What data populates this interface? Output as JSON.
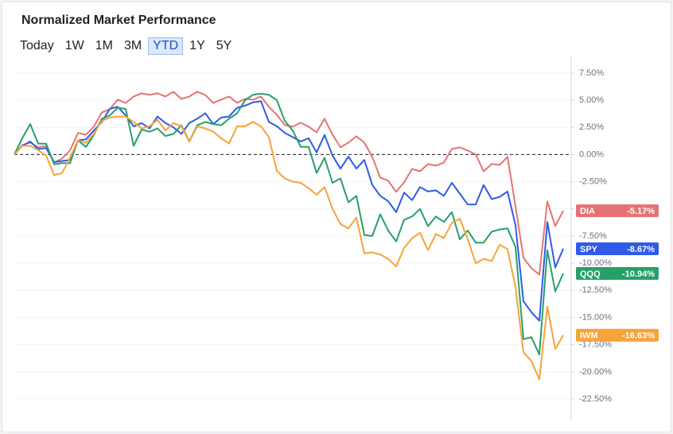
{
  "chart_data": {
    "type": "line",
    "title": "Normalized Market Performance",
    "ranges": [
      "Today",
      "1W",
      "1M",
      "3M",
      "YTD",
      "1Y",
      "5Y"
    ],
    "active_range": "YTD",
    "ylim": [
      -24.4,
      9.1
    ],
    "yticks": [
      {
        "value": 7.5,
        "label": "7.50%"
      },
      {
        "value": 5,
        "label": "5.00%"
      },
      {
        "value": 2.5,
        "label": "2.50%"
      },
      {
        "value": 0,
        "label": "0.00%"
      },
      {
        "value": -2.5,
        "label": "-2.50%"
      },
      {
        "value": -5,
        "label": "-5.00%"
      },
      {
        "value": -7.5,
        "label": "-7.50%"
      },
      {
        "value": -10,
        "label": "-10.00%"
      },
      {
        "value": -12.5,
        "label": "-12.50%"
      },
      {
        "value": -15,
        "label": "-15.00%"
      },
      {
        "value": -17.5,
        "label": "-17.50%"
      },
      {
        "value": -20,
        "label": "-20.00%"
      },
      {
        "value": -22.5,
        "label": "-22.50%"
      }
    ],
    "grid": true,
    "reference_line": 0,
    "series": [
      {
        "name": "DIA",
        "color": "#e57373",
        "values": [
          0,
          0.88,
          1.1,
          0.66,
          0.8,
          -0.73,
          -0.37,
          0.37,
          1.98,
          1.83,
          2.56,
          3.88,
          4.17,
          5.05,
          4.75,
          5.34,
          5.63,
          5.49,
          5.63,
          5.34,
          5.78,
          5.12,
          5.34,
          5.78,
          5.49,
          4.75,
          5.05,
          5.34,
          4.75,
          5.12,
          5.05,
          5.34,
          4.39,
          3.66,
          2.71,
          2.56,
          2.93,
          2.56,
          2.05,
          3.29,
          1.83,
          0.66,
          1.1,
          1.68,
          1.1,
          -0.22,
          -2.12,
          -2.41,
          -3.44,
          -2.56,
          -1.32,
          -1.54,
          -0.88,
          -1.02,
          -0.73,
          0.51,
          0.66,
          0.37,
          0,
          -1.54,
          -0.88,
          -0.95,
          -0.22,
          -4.75,
          -9.51,
          -10.46,
          -11.05,
          -4.32,
          -6.58,
          -5.17
        ],
        "value_labels": [
          null,
          null,
          null,
          null,
          null,
          null,
          null,
          null,
          null,
          null,
          null,
          null,
          null,
          null,
          null,
          null,
          null,
          null,
          null,
          null,
          null,
          null,
          null,
          null,
          null,
          null,
          null,
          null,
          null,
          null,
          null,
          null,
          null,
          null,
          null,
          null,
          null,
          null,
          null,
          null,
          null,
          null,
          null,
          null,
          null,
          null,
          null,
          null,
          null,
          null,
          null,
          null,
          null,
          null,
          null,
          null,
          null,
          null,
          null,
          null,
          null,
          null,
          null,
          null,
          null,
          null,
          null,
          null,
          null,
          "-5.17%"
        ]
      },
      {
        "name": "SPY",
        "color": "#2f5be8",
        "values": [
          0,
          0.8,
          1.2,
          0.5,
          0.6,
          -0.7,
          -0.6,
          -0.5,
          1.3,
          1.4,
          2.2,
          3.0,
          4.2,
          4.4,
          3.6,
          2.6,
          2.9,
          2.4,
          3.5,
          2.9,
          2.5,
          1.9,
          2.9,
          3.3,
          3.8,
          2.8,
          3.4,
          3.5,
          4.3,
          4.5,
          4.8,
          4.9,
          3.0,
          2.6,
          2.0,
          1.6,
          1.2,
          1.5,
          0.2,
          1.8,
          -0.1,
          -1.3,
          -0.2,
          -1.3,
          -0.5,
          -2.8,
          -3.8,
          -4.3,
          -5.3,
          -3.5,
          -4.2,
          -3.0,
          -3.4,
          -3.3,
          -3.8,
          -2.6,
          -3.6,
          -4.6,
          -4.6,
          -2.8,
          -4.1,
          -3.9,
          -3.4,
          -6.5,
          -13.5,
          -14.5,
          -15.3,
          -6.2,
          -10.4,
          -8.67
        ],
        "value_labels": [
          null,
          null,
          null,
          null,
          null,
          null,
          null,
          null,
          null,
          null,
          null,
          null,
          null,
          null,
          null,
          null,
          null,
          null,
          null,
          null,
          null,
          null,
          null,
          null,
          null,
          null,
          null,
          null,
          null,
          null,
          null,
          null,
          null,
          null,
          null,
          null,
          null,
          null,
          null,
          null,
          null,
          null,
          null,
          null,
          null,
          null,
          null,
          null,
          null,
          null,
          null,
          null,
          null,
          null,
          null,
          null,
          null,
          null,
          null,
          null,
          null,
          null,
          null,
          null,
          null,
          null,
          null,
          null,
          null,
          "-8.67%"
        ]
      },
      {
        "name": "QQQ",
        "color": "#26a069",
        "values": [
          0,
          1.5,
          2.8,
          1.0,
          1.0,
          -0.9,
          -0.8,
          -0.8,
          1.3,
          0.7,
          1.8,
          3.3,
          3.6,
          4.3,
          4.2,
          0.8,
          2.3,
          2.1,
          2.4,
          1.7,
          1.9,
          2.7,
          1.2,
          2.7,
          3.0,
          2.8,
          2.7,
          3.3,
          3.8,
          5.0,
          5.5,
          5.6,
          5.5,
          5.0,
          3.1,
          2.2,
          0.7,
          0.7,
          -1.7,
          -0.3,
          -2.6,
          -2.2,
          -4.4,
          -3.8,
          -7.4,
          -7.5,
          -5.5,
          -7.0,
          -8.0,
          -6.0,
          -5.7,
          -5.0,
          -6.6,
          -5.7,
          -6.2,
          -5.3,
          -7.8,
          -7.0,
          -8.1,
          -8.1,
          -7.1,
          -6.9,
          -6.8,
          -8.5,
          -17.0,
          -16.8,
          -18.4,
          -8.8,
          -12.6,
          -10.94
        ],
        "value_labels": [
          null,
          null,
          null,
          null,
          null,
          null,
          null,
          null,
          null,
          null,
          null,
          null,
          null,
          null,
          null,
          null,
          null,
          null,
          null,
          null,
          null,
          null,
          null,
          null,
          null,
          null,
          null,
          null,
          null,
          null,
          null,
          null,
          null,
          null,
          null,
          null,
          null,
          null,
          null,
          null,
          null,
          null,
          null,
          null,
          null,
          null,
          null,
          null,
          null,
          null,
          null,
          null,
          null,
          null,
          null,
          null,
          null,
          null,
          null,
          null,
          null,
          null,
          null,
          null,
          null,
          null,
          null,
          null,
          null,
          "-10.94%"
        ]
      },
      {
        "name": "IWM",
        "color": "#f5a33a",
        "values": [
          0,
          0.8,
          0.8,
          0.4,
          -0.1,
          -1.9,
          -1.7,
          -0.3,
          1.3,
          1.1,
          1.9,
          3.1,
          3.4,
          3.5,
          3.5,
          3.0,
          2.4,
          2.6,
          3.2,
          2.2,
          2.9,
          2.6,
          1.2,
          2.6,
          2.4,
          2.1,
          1.5,
          1.0,
          2.6,
          2.6,
          3.0,
          2.6,
          1.6,
          -1.5,
          -2.2,
          -2.5,
          -2.6,
          -3.1,
          -3.7,
          -3.0,
          -5.0,
          -6.4,
          -6.8,
          -5.8,
          -9.1,
          -9.0,
          -9.2,
          -9.6,
          -10.3,
          -8.6,
          -7.7,
          -7.2,
          -8.8,
          -7.3,
          -7.7,
          -6.3,
          -5.9,
          -7.8,
          -10.0,
          -9.6,
          -9.8,
          -8.3,
          -8.7,
          -12.2,
          -18.2,
          -19.0,
          -20.7,
          -14.0,
          -17.9,
          -16.63
        ],
        "value_labels": [
          null,
          null,
          null,
          null,
          null,
          null,
          null,
          null,
          null,
          null,
          null,
          null,
          null,
          null,
          null,
          null,
          null,
          null,
          null,
          null,
          null,
          null,
          null,
          null,
          null,
          null,
          null,
          null,
          null,
          null,
          null,
          null,
          null,
          null,
          null,
          null,
          null,
          null,
          null,
          null,
          null,
          null,
          null,
          null,
          null,
          null,
          null,
          null,
          null,
          null,
          null,
          null,
          null,
          null,
          null,
          null,
          null,
          null,
          null,
          null,
          null,
          null,
          null,
          null,
          null,
          null,
          null,
          null,
          null,
          "-16.63%"
        ]
      }
    ]
  }
}
